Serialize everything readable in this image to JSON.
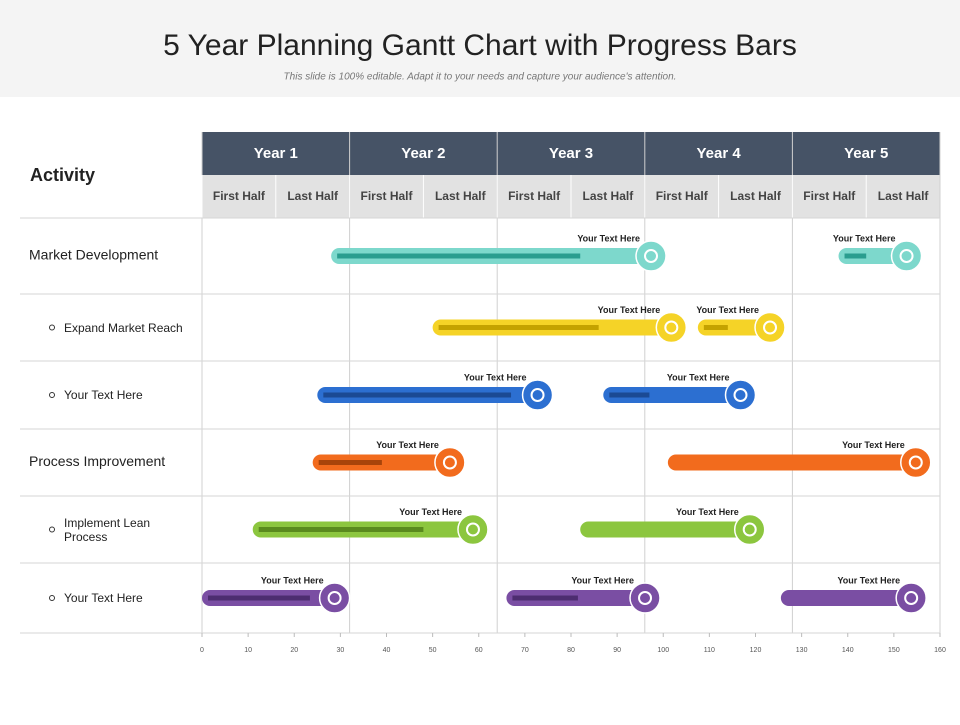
{
  "chart_data": {
    "type": "gantt",
    "title": "5 Year Planning Gantt Chart with Progress Bars",
    "subtitle": "This slide is 100% editable. Adapt it to your needs and capture your audience's attention.",
    "row_header": "Activity",
    "xlim": [
      0,
      160
    ],
    "xticks": [
      0,
      10,
      20,
      30,
      40,
      50,
      60,
      70,
      80,
      90,
      100,
      110,
      120,
      130,
      140,
      150,
      160
    ],
    "years": [
      {
        "label": "Year 1",
        "start": 0,
        "end": 32
      },
      {
        "label": "Year 2",
        "start": 32,
        "end": 64
      },
      {
        "label": "Year 3",
        "start": 64,
        "end": 96
      },
      {
        "label": "Year 4",
        "start": 96,
        "end": 128
      },
      {
        "label": "Year 5",
        "start": 128,
        "end": 160
      }
    ],
    "halves": [
      {
        "label": "First Half",
        "start": 0,
        "end": 16
      },
      {
        "label": "Last Half",
        "start": 16,
        "end": 32
      },
      {
        "label": "First Half",
        "start": 32,
        "end": 48
      },
      {
        "label": "Last Half",
        "start": 48,
        "end": 64
      },
      {
        "label": "First Half",
        "start": 64,
        "end": 80
      },
      {
        "label": "Last Half",
        "start": 80,
        "end": 96
      },
      {
        "label": "First Half",
        "start": 96,
        "end": 112
      },
      {
        "label": "Last Half",
        "start": 112,
        "end": 128
      },
      {
        "label": "First Half",
        "start": 128,
        "end": 144
      },
      {
        "label": "Last Half",
        "start": 144,
        "end": 160
      }
    ],
    "rows": [
      {
        "name": "Market Development",
        "sub": false,
        "color": "#7dd8cc",
        "progress_color": "#2a9d8f",
        "tasks": [
          {
            "label": "Your Text Here",
            "start": 28,
            "end": 100.6,
            "progress": 82
          },
          {
            "label": "Your Text Here",
            "start": 138,
            "end": 156,
            "progress": 144
          }
        ]
      },
      {
        "name": "Expand Market Reach",
        "sub": true,
        "color": "#f5d327",
        "progress_color": "#c4a200",
        "tasks": [
          {
            "label": "Your Text Here",
            "start": 50,
            "end": 105,
            "progress": 86
          },
          {
            "label": "Your Text Here",
            "start": 107.5,
            "end": 126.4,
            "progress": 114
          }
        ]
      },
      {
        "name": "Your Text Here",
        "sub": true,
        "color": "#2c6fd1",
        "progress_color": "#1b4a94",
        "tasks": [
          {
            "label": "Your Text Here",
            "start": 25,
            "end": 76,
            "progress": 67
          },
          {
            "label": "Your Text Here",
            "start": 87,
            "end": 120,
            "progress": 97
          }
        ]
      },
      {
        "name": "Process Improvement",
        "sub": false,
        "color": "#f26b1d",
        "progress_color": "#a8440a",
        "tasks": [
          {
            "label": "Your Text Here",
            "start": 24,
            "end": 57,
            "progress": 39
          },
          {
            "label": "Your Text Here",
            "start": 101,
            "end": 158,
            "progress": null
          }
        ]
      },
      {
        "name": "Implement Lean Process",
        "sub": true,
        "color": "#8cc63f",
        "progress_color": "#5a8a1e",
        "tasks": [
          {
            "label": "Your Text Here",
            "start": 11,
            "end": 62,
            "progress": 48
          },
          {
            "label": "Your Text Here",
            "start": 82,
            "end": 122,
            "progress": null
          }
        ]
      },
      {
        "name": "Your Text Here",
        "sub": true,
        "color": "#7a4ea3",
        "progress_color": "#4d2d70",
        "tasks": [
          {
            "label": "Your Text Here",
            "start": 0,
            "end": 32,
            "progress": 23.4
          },
          {
            "label": "Your Text Here",
            "start": 66,
            "end": 99.3,
            "progress": 81.5
          },
          {
            "label": "Your Text Here",
            "start": 125.5,
            "end": 157,
            "progress": null
          }
        ]
      }
    ]
  }
}
